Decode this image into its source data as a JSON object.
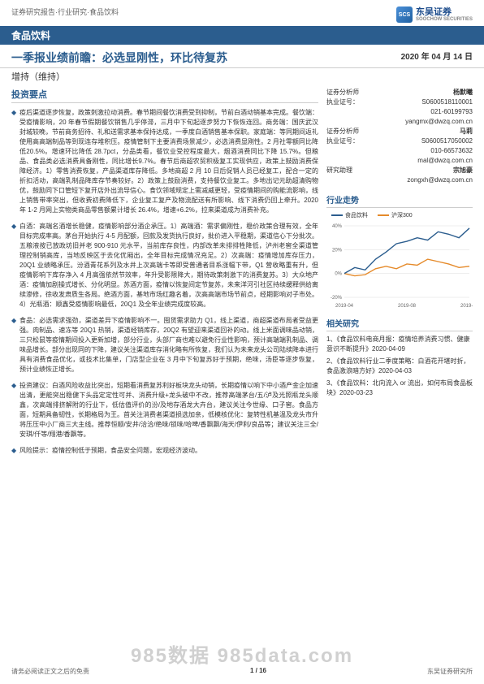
{
  "breadcrumb": "证券研究报告·行业研究·食品饮料",
  "brand": {
    "cn": "东吴证券",
    "en": "SOOCHOW SECURITIES",
    "mark": "SCS"
  },
  "band": "食品饮料",
  "title": "一季报业绩前瞻：必选显刚性，环比待复苏",
  "date": "2020 年 04 月 14 日",
  "rating": "增持（维持）",
  "key_points_header": "投资要点",
  "bullets": [
    "疫后渠道逐步恢复，政策刺激拉动消费。春节期间餐饮消费受到抑制，节前白酒动销基本完成。餐饮端：受疫情影响，20 年春节假期餐饮销售几乎停滞，三月中下旬起逐步努力下恢恢连回。商务端：国庆武汉封城较晚，节前商务招待、礼和送需求基本保持达成，一季度白酒销售基本保职。家庭端：等同期间返礼使用高高端制品等到现连存堆积压。疫情管制下主要消费场景减少，必选消费显刚性。2 月社零额同比降低20.5%。增速环比降低 28.7pct，分品类看，餐饮业受控程度最大，烟酒消费同比下降 15.7%。但粮品、食品类必选消费具备刚性，同比增长9.7%。春节后商超农贸积极复工实现供应，政策上鼓励消费保障经济。1）零售消费恢复，产品渠道库存降低。多地商超 2 月 10 日后促销人员已经复工，配合一定的折扣活动，高端乳制品降库存节奏较好。2）政策上鼓励消费，支持餐饮业复工。多地出记元助超清购物优，鼓励同下口管短下复开店外出流导信心。食饮领域规定上需减威更轻，受疫情期间的购能流影响，线上销售带率突出，但收费初费降低下，企业复工复产及物流配送有所影响、线下消费仍回上牵升。2020 年 1-2 月网上实物类商品零售额累计增长 26.4%，增速+6.2%，拉来渠道成为消费补充。",
    "白酒：高端名酒增长稳健，疫情影响部分酒企承压。1）高端酒：需求偏刚性，稳价政策合理有效，全年目标完成率高。茅台开始执行 4-5 月配额，回款及发货执行良好，批价进入平稳期，渠道信心下分批次。五粮液按已放政坊旧并老 900-910 元水平，当前库存良性，内部改革未排排牲降低，泸州老窖全渠道管理控制销高库，当地反映区于去化优厢出，全年目标完成情况充足。2）次高端：疫情增加库存压力，20Q1 业绩略承压。汾酒青花系列及水井上次高端卡等即受普通者目系涨幅下带，Q1 营收略重有升，但疫情影响下库存净入 4 月高强依然节效率，年升受影限降大，期待政策刺激下的消费复苏。3）大众地产酒：疫情加剧操式增长、分化明显。苏酒方面，疫情以恢复间定节复苏，未来洋河引社区持续缓释供给离续渗修，徐收发肃质生各局。绝酒方面，基地市场红趣名着，次高高端市场节前点，经期影响对子市处。4）光瓶酒：顺鑫受疫情影响最低，20Q1 及全年业绩完成度较高。",
    "食品：必选需求强劲，渠道差异下疫情影响不一。囤货需求助力 Q1，线上渠道，商超渠道布局者受益更强。肉制品、速冻等 20Q1 热销，渠道经销库存，20Q2 有望迎来渠道回补的动。线上米面调味品动销，三只松鼠等疫情期间投入更新加增，部分行业，头部厂商也难以避免行业性影响，预计高端端乳制品、调味品增长。部分出现同的下降，建议关注渠道库存消化略有所恢复，我们认为未来龙头公司陆续降本进行具有消费食品优化，或技术比集单，门店型企业在 3 月中下旬复苏好于预期，绝味，汤臣等逐步恢复，预计业绩恢正增长。",
    "投资建议：白酒风险收益比突出，短期看消费复苏利好板块龙头动销，长期疫情以响下中小酒产金企加速出清，更能突出稳健下头品定定性可并、消费升级+龙头破中不改，推荐高端茅台/五/泸及光照瓶龙头顺鑫，次高端排挤解附的行业下，低估值评价的汾/及地存酒龙大卉台，建议关注今世缘、口子窖。食品方面，短期具备韧性，长期格局为王。首关注消费者渠道损选加亲，低模核优化：复转性机基温及龙头市升将压压中小厂商三大主线。推荐恒顺/安井/洽洽/绝味/锁味/哈啤/香飘飘/海天/伊利/良品等；建议关注三全/安琪/仟等/翔港/香飘等。",
    "风险提示：疫情控制低于预期，食品安全问题，宏观经济波动。"
  ],
  "analysts": {
    "title1": "证券分析师",
    "name1": "杨默曦",
    "license1_label": "执业证号：",
    "license1": "S0600518110001",
    "phone1": "021-60199793",
    "email1": "yangmx@dwzq.com.cn",
    "name2": "马莉",
    "license2": "S0600517050002",
    "phone2": "010-66573632",
    "email2": "mal@dwzq.com.cn",
    "assistant_label": "研究助理",
    "assistant_name": "宗旭豪",
    "assistant_email": "zongxh@dwzq.com.cn"
  },
  "chart": {
    "title": "行业走势",
    "series1_label": "食品饮料",
    "series2_label": "沪深300",
    "series1_color": "#2b5d8e",
    "series2_color": "#e58a2a",
    "x_labels": [
      "2019-04",
      "2019-08",
      "2019-12"
    ],
    "y_ticks": [
      -20,
      0,
      20,
      40
    ],
    "series1": [
      0,
      5,
      3,
      12,
      18,
      25,
      27,
      30,
      28,
      35,
      33,
      30,
      38
    ],
    "series2": [
      0,
      -2,
      -1,
      4,
      6,
      4,
      8,
      7,
      12,
      10,
      8,
      5,
      6
    ],
    "background_color": "#ffffff",
    "grid_color": "#dddddd"
  },
  "related": {
    "header": "相关研究",
    "items": [
      "1、《食品饮料电商月报：疫情培养消费习惯、健康意识不断提升》2020-04-09",
      "2、《食品饮料行业二季度策略：白酒花开堪时折，食品激浪暗方好》2020-04-03",
      "3、《食品饮料：北向流入 or 流出，如何布局食品板块》2020-03-23"
    ]
  },
  "footer": {
    "page": "1 / 16",
    "disclaimer": "请务必阅读正文之后的免责",
    "right": "东吴证券研究所",
    "watermark": "985数据 985data.com"
  }
}
